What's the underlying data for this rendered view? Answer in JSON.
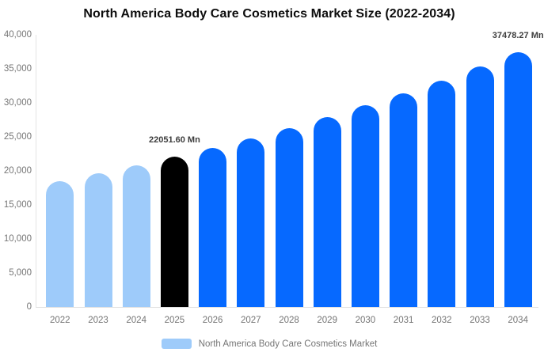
{
  "title": "North America Body Care Cosmetics Market Size (2022-2034)",
  "legend": {
    "label": "North America Body Care Cosmetics Market",
    "swatch_color": "#9ecbfa"
  },
  "colors": {
    "historical_bar": "#9ecbfa",
    "highlight_bar": "#000000",
    "forecast_bar": "#0669ff",
    "axis_text": "#757575",
    "axis_line": "#e0e0e0",
    "value_label_text": "#3d3d3d",
    "title_text": "#0d0d0d",
    "background": "#ffffff"
  },
  "chart_data": {
    "type": "bar",
    "title": "North America Body Care Cosmetics Market Size (2022-2034)",
    "categories": [
      "2022",
      "2023",
      "2024",
      "2025",
      "2026",
      "2027",
      "2028",
      "2029",
      "2030",
      "2031",
      "2032",
      "2033",
      "2034"
    ],
    "values": [
      18480,
      19600,
      20790,
      22051.6,
      23390,
      24810,
      26320,
      27910,
      29610,
      31400,
      33310,
      35330,
      37478.27
    ],
    "unit": "Mn",
    "bar_colors": [
      "#9ecbfa",
      "#9ecbfa",
      "#9ecbfa",
      "#000000",
      "#0669ff",
      "#0669ff",
      "#0669ff",
      "#0669ff",
      "#0669ff",
      "#0669ff",
      "#0669ff",
      "#0669ff",
      "#0669ff"
    ],
    "annotations": [
      {
        "index": 3,
        "text": "22051.60 Mn"
      },
      {
        "index": 12,
        "text": "37478.27 Mn"
      }
    ],
    "xlabel": "",
    "ylabel": "",
    "ylim": [
      0,
      40000
    ],
    "ytick_step": 5000,
    "ytick_labels": [
      "0",
      "5,000",
      "10,000",
      "15,000",
      "20,000",
      "25,000",
      "30,000",
      "35,000",
      "40,000"
    ],
    "grid": false,
    "legend_position": "bottom",
    "legend_entries": [
      "North America Body Care Cosmetics Market"
    ]
  }
}
